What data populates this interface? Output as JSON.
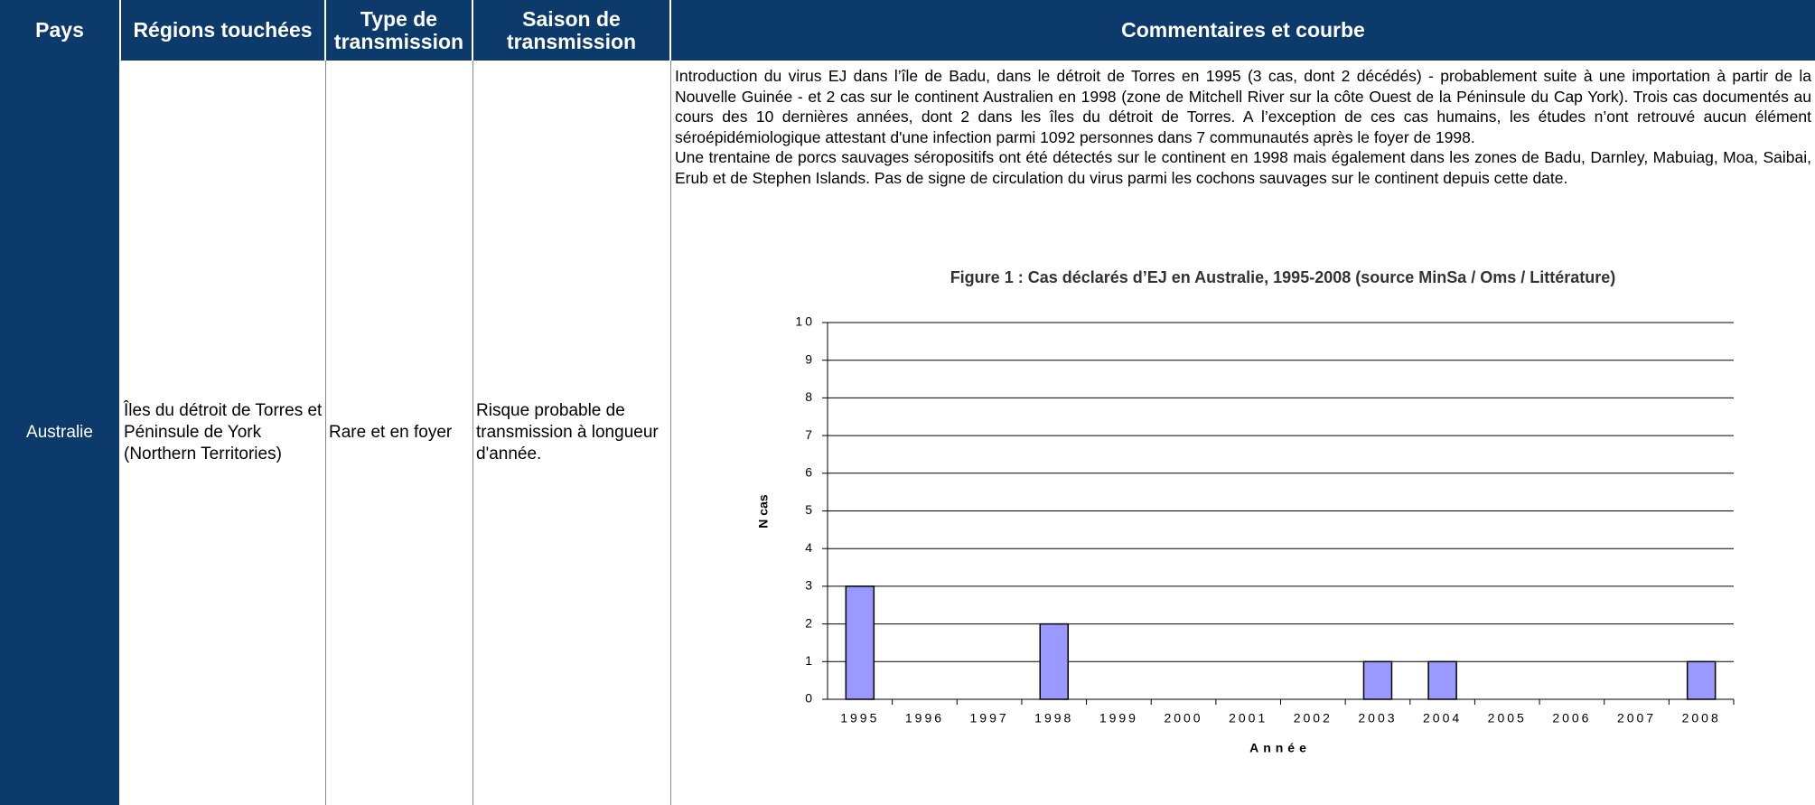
{
  "table": {
    "headers": [
      "Pays",
      "Régions touchées",
      "Type de transmission",
      "Saison de transmission",
      "Commentaires et courbe"
    ],
    "rows": [
      [
        "Australie",
        "Îles du détroit de Torres et Péninsule de York (Northern Territories)",
        "Rare et en foyer",
        "Risque probable de transmission à longueur d'année."
      ]
    ]
  },
  "comments": [
    "Introduction du virus EJ dans l’île de Badu, dans le détroit de Torres en 1995 (3 cas, dont 2 décédés) - probablement suite à une importation à partir de la Nouvelle Guinée - et 2 cas sur le continent Australien en 1998 (zone de Mitchell River sur la côte Ouest de la Péninsule du Cap York). Trois cas documentés au cours des 10 dernières années, dont 2 dans les îles du détroit de Torres. A l’exception de ces cas humains, les études n’ont retrouvé aucun élément séroépidémiologique attestant d'une infection parmi 1092 personnes dans 7 communautés après le foyer de 1998.",
    "Une trentaine de porcs sauvages séropositifs ont été détectés sur le continent en 1998 mais également dans les zones de Badu, Darnley, Mabuiag, Moa, Saibai, Erub et de Stephen Islands. Pas de signe de circulation du virus parmi les cochons sauvages sur le continent depuis cette date."
  ],
  "chart_data": {
    "type": "bar",
    "title": "Figure 1 : Cas déclarés d’EJ en Australie, 1995-2008 (source MinSa / Oms / Littérature)",
    "x_label": "Année",
    "y_label": "N cas",
    "categories": [
      "1995",
      "1996",
      "1997",
      "1998",
      "1999",
      "2000",
      "2001",
      "2002",
      "2003",
      "2004",
      "2005",
      "2006",
      "2007",
      "2008"
    ],
    "values": [
      3,
      0,
      0,
      2,
      0,
      0,
      0,
      0,
      1,
      1,
      0,
      0,
      0,
      1
    ],
    "color": "#9999ff",
    "ylim": [
      0,
      10
    ],
    "yticks": [
      0,
      1,
      2,
      3,
      4,
      5,
      6,
      7,
      8,
      9,
      10
    ],
    "grid": true
  }
}
